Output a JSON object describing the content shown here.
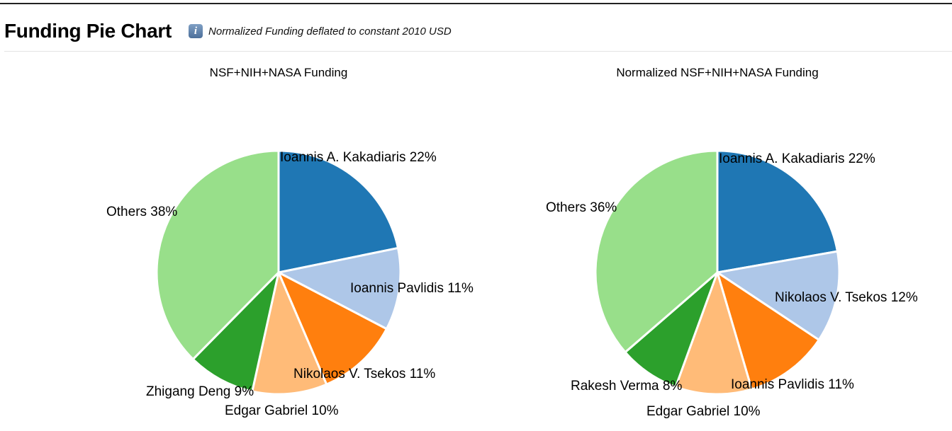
{
  "page": {
    "title": "Funding Pie Chart",
    "info_icon": "info-icon",
    "subtitle": "Normalized Funding deflated to constant 2010 USD"
  },
  "chart_data": [
    {
      "type": "pie",
      "title": "NSF+NIH+NASA Funding",
      "slices": [
        {
          "label": "Ioannis A. Kakadiaris",
          "value": 22,
          "display": "Ioannis A. Kakadiaris 22%",
          "color": "#1f77b4"
        },
        {
          "label": "Ioannis Pavlidis",
          "value": 11,
          "display": "Ioannis Pavlidis 11%",
          "color": "#aec7e8"
        },
        {
          "label": "Nikolaos V. Tsekos",
          "value": 11,
          "display": "Nikolaos V. Tsekos 11%",
          "color": "#ff7f0e"
        },
        {
          "label": "Edgar Gabriel",
          "value": 10,
          "display": "Edgar Gabriel 10%",
          "color": "#ffbb78"
        },
        {
          "label": "Zhigang Deng",
          "value": 9,
          "display": "Zhigang Deng 9%",
          "color": "#2ca02c"
        },
        {
          "label": "Others",
          "value": 38,
          "display": "Others 38%",
          "color": "#98df8a"
        }
      ]
    },
    {
      "type": "pie",
      "title": "Normalized NSF+NIH+NASA Funding",
      "slices": [
        {
          "label": "Ioannis A. Kakadiaris",
          "value": 22,
          "display": "Ioannis A. Kakadiaris 22%",
          "color": "#1f77b4"
        },
        {
          "label": "Nikolaos V. Tsekos",
          "value": 12,
          "display": "Nikolaos V. Tsekos 12%",
          "color": "#aec7e8"
        },
        {
          "label": "Ioannis Pavlidis",
          "value": 11,
          "display": "Ioannis Pavlidis 11%",
          "color": "#ff7f0e"
        },
        {
          "label": "Edgar Gabriel",
          "value": 10,
          "display": "Edgar Gabriel 10%",
          "color": "#ffbb78"
        },
        {
          "label": "Rakesh Verma",
          "value": 8,
          "display": "Rakesh Verma 8%",
          "color": "#2ca02c"
        },
        {
          "label": "Others",
          "value": 36,
          "display": "Others 36%",
          "color": "#98df8a"
        }
      ]
    }
  ]
}
